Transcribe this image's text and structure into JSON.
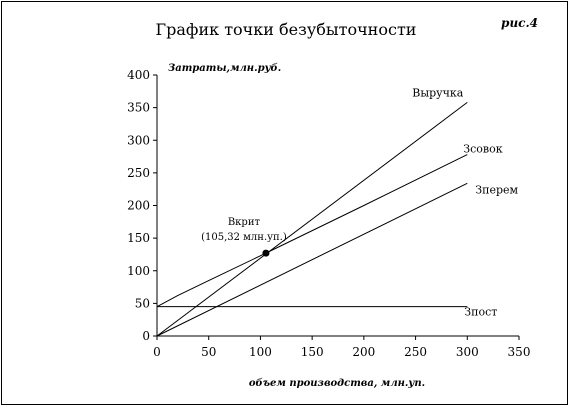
{
  "figure_label": "рис.4",
  "chart_data": {
    "type": "line",
    "title": "График точки безубыточности",
    "ylabel": "Затраты,млн.руб.",
    "xlabel": "объем производства, млн.уп.",
    "xlim": [
      0,
      350
    ],
    "ylim": [
      0,
      400
    ],
    "x_ticks": [
      "0",
      "50",
      "100",
      "150",
      "200",
      "250",
      "300",
      "350"
    ],
    "y_ticks": [
      "0",
      "50",
      "100",
      "150",
      "200",
      "250",
      "300",
      "350",
      "400"
    ],
    "series": [
      {
        "name": "Выручка",
        "x": [
          0,
          300
        ],
        "y": [
          0,
          358
        ]
      },
      {
        "name": "Зсовок",
        "x": [
          0,
          20,
          50,
          105.32,
          200,
          300
        ],
        "y": [
          45,
          62,
          85,
          127,
          200,
          278
        ]
      },
      {
        "name": "Зперем",
        "x": [
          0,
          300
        ],
        "y": [
          0,
          234
        ]
      },
      {
        "name": "Зпост",
        "x": [
          0,
          300
        ],
        "y": [
          45,
          45
        ]
      }
    ],
    "break_even": {
      "label": "Вкрит",
      "value_label": "(105,32 млн.уп.)",
      "x": 105.32,
      "y": 127
    },
    "grid": false,
    "legend": "none"
  }
}
